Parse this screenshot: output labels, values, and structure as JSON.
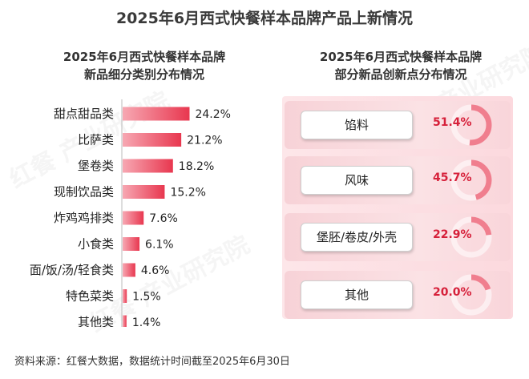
{
  "page": {
    "title": "2025年6月西式快餐样本品牌产品上新情况",
    "source": "资料来源：红餐大数据，数据统计时间截至2025年6月30日"
  },
  "watermarks": [
    "红餐 产业研究院",
    "红餐 产业研究院",
    "红餐 产业研究院"
  ],
  "chart_data": [
    {
      "type": "bar",
      "orientation": "horizontal",
      "title": "2025年6月西式快餐样本品牌\n新品细分类别分布情况",
      "title_lines": [
        "2025年6月西式快餐样本品牌",
        "新品细分类别分布情况"
      ],
      "categories": [
        "甜点甜品类",
        "比萨类",
        "堡卷类",
        "现制饮品类",
        "炸鸡鸡排类",
        "小食类",
        "面/饭/汤/轻食类",
        "特色菜类",
        "其他类"
      ],
      "values": [
        24.2,
        21.2,
        18.2,
        15.2,
        7.6,
        6.1,
        4.6,
        1.5,
        1.4
      ],
      "value_labels": [
        "24.2%",
        "21.2%",
        "18.2%",
        "15.2%",
        "7.6%",
        "6.1%",
        "4.6%",
        "1.5%",
        "1.4%"
      ],
      "unit": "%",
      "color": "#e8374f"
    },
    {
      "type": "bar",
      "style": "progress-ring",
      "title": "2025年6月西式快餐样本品牌\n部分新品创新点分布情况",
      "title_lines": [
        "2025年6月西式快餐样本品牌",
        "部分新品创新点分布情况"
      ],
      "categories": [
        "馅料",
        "风味",
        "堡胚/卷皮/外壳",
        "其他"
      ],
      "values": [
        51.4,
        45.7,
        22.9,
        20.0
      ],
      "value_labels": [
        "51.4%",
        "45.7%",
        "22.9%",
        "20.0%"
      ],
      "unit": "%",
      "color": "#e8374f"
    }
  ]
}
